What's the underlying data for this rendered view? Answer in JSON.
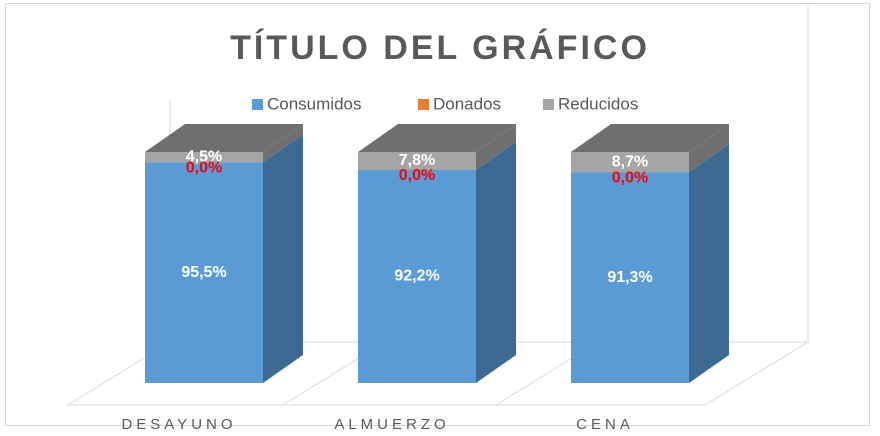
{
  "chart_data": {
    "type": "bar3d_stacked",
    "title": "TÍTULO  DEL GRÁFICO",
    "categories": [
      "DESAYUNO",
      "ALMUERZO",
      "CENA"
    ],
    "series": [
      {
        "name": "Consumidos",
        "color": "#5b9bd5",
        "side_color": "#3d6a92",
        "label_color": "#ffffff",
        "values": [
          95.5,
          92.2,
          91.3
        ],
        "value_labels": [
          "95,5%",
          "92,2%",
          "91,3%"
        ]
      },
      {
        "name": "Donados",
        "color": "#ed7d31",
        "side_color": "#a8561f",
        "label_color": "#ff0000",
        "values": [
          0,
          0,
          0
        ],
        "value_labels": [
          "0,0%",
          "0,0%",
          "0,0%"
        ]
      },
      {
        "name": "Reducidos",
        "color": "#a5a5a5",
        "side_color": "#6f6f6f",
        "label_color": "#ffffff",
        "values": [
          4.5,
          7.8,
          8.7
        ],
        "value_labels": [
          "4,5%",
          "7,8%",
          "8,7%"
        ]
      }
    ],
    "legend": "top"
  }
}
